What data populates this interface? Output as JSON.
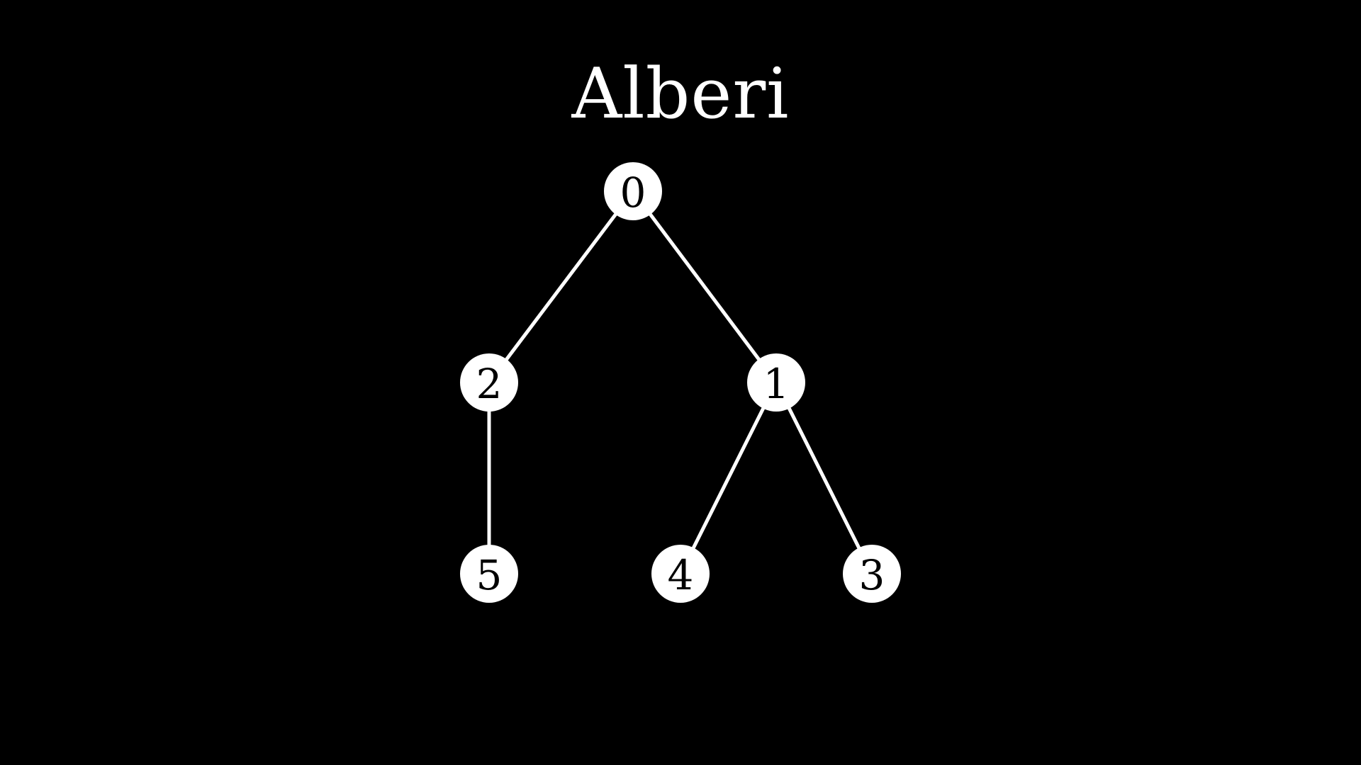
{
  "title": "Alberi",
  "colors": {
    "background": "#000000",
    "foreground": "#ffffff",
    "node_text": "#000000"
  },
  "tree": {
    "nodes": [
      {
        "id": "0",
        "label": "0"
      },
      {
        "id": "2",
        "label": "2"
      },
      {
        "id": "1",
        "label": "1"
      },
      {
        "id": "5",
        "label": "5"
      },
      {
        "id": "4",
        "label": "4"
      },
      {
        "id": "3",
        "label": "3"
      }
    ],
    "edges": [
      {
        "from": "0",
        "to": "2"
      },
      {
        "from": "0",
        "to": "1"
      },
      {
        "from": "2",
        "to": "5"
      },
      {
        "from": "1",
        "to": "4"
      },
      {
        "from": "1",
        "to": "3"
      }
    ]
  }
}
